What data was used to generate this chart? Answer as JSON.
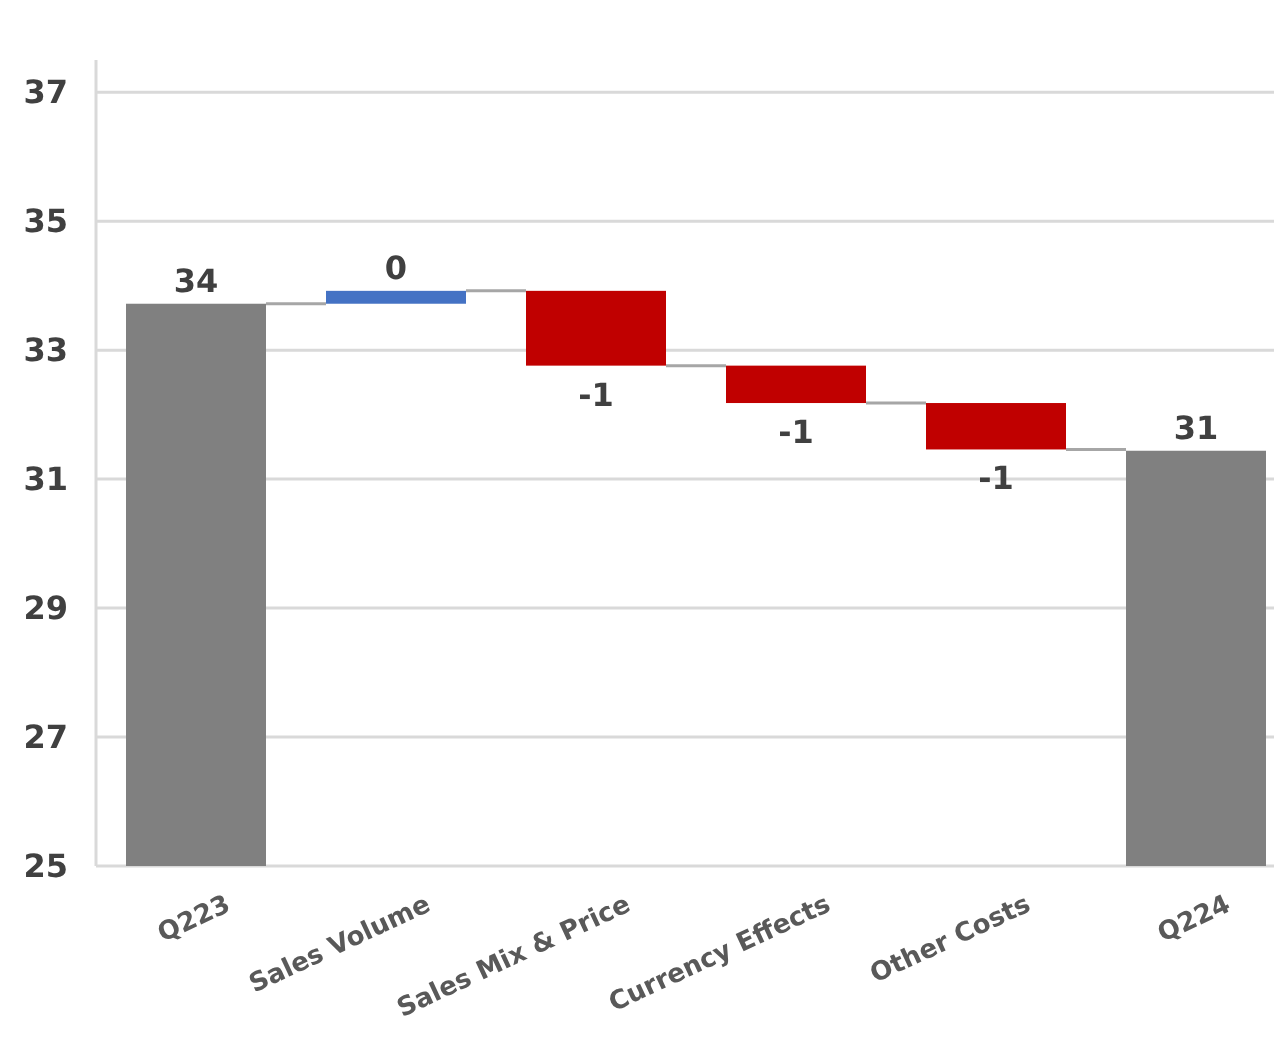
{
  "chart_data": {
    "type": "bar",
    "categories": [
      "Q223",
      "Sales Volume",
      "Sales Mix & Price",
      "Currency Effects",
      "Other Costs",
      "Q224"
    ],
    "values": [
      8.72,
      0.2,
      -1.16,
      -0.58,
      -0.72,
      6.44
    ],
    "base": [
      25,
      33.72,
      33.92,
      32.76,
      32.18,
      25
    ],
    "colors": [
      "#808080",
      "#4472c4",
      "#c00000",
      "#c00000",
      "#c00000",
      "#808080"
    ],
    "value_labels": [
      "34",
      "0",
      "-1",
      "-1",
      "-1",
      "31"
    ],
    "ylim": [
      25,
      37.5
    ],
    "yticks": [
      25,
      27,
      29,
      31,
      33,
      35,
      37
    ],
    "grid": "y"
  }
}
